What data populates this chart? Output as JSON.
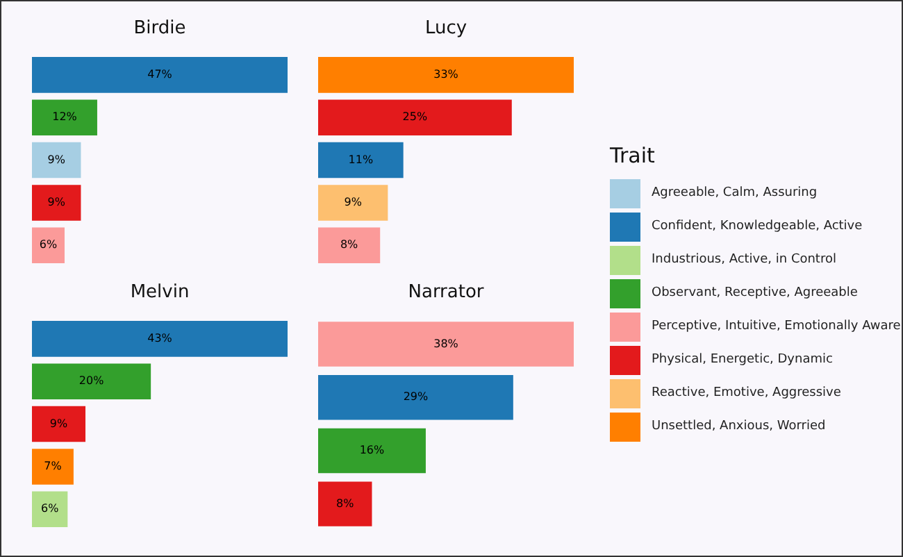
{
  "chart_data": [
    {
      "type": "bar",
      "title": "Birdie",
      "orientation": "horizontal",
      "stacked": true,
      "tick_labels": false,
      "legend": "right",
      "legend_title": "Trait",
      "categories": [
        null,
        null,
        null,
        null,
        null
      ],
      "series": [
        {
          "name": "Confident, Knowledgeable, Active",
          "color": "#1f78b4",
          "values": [
            47,
            null,
            null,
            null,
            null
          ],
          "value_labels": [
            "47%",
            null,
            null,
            null,
            null
          ]
        },
        {
          "name": "Observant, Receptive, Agreeable",
          "color": "#33a02c",
          "values": [
            null,
            12,
            null,
            null,
            null
          ],
          "value_labels": [
            null,
            "12%",
            null,
            null,
            null
          ]
        },
        {
          "name": "Agreeable, Calm, Assuring",
          "color": "#a6cee3",
          "values": [
            null,
            null,
            9,
            null,
            null
          ],
          "value_labels": [
            null,
            null,
            "9%",
            null,
            null
          ]
        },
        {
          "name": "Physical, Energetic, Dynamic",
          "color": "#e31a1c",
          "values": [
            null,
            null,
            null,
            9,
            null
          ],
          "value_labels": [
            null,
            null,
            null,
            "9%",
            null
          ]
        },
        {
          "name": "Perceptive, Intuitive, Emotionally Aware",
          "color": "#fb9a99",
          "values": [
            null,
            null,
            null,
            null,
            6
          ],
          "value_labels": [
            null,
            null,
            null,
            null,
            "6%"
          ]
        }
      ]
    },
    {
      "type": "bar",
      "title": "Lucy",
      "orientation": "horizontal",
      "stacked": true,
      "tick_labels": false,
      "legend": "right",
      "categories": [
        null,
        null,
        null,
        null,
        null
      ],
      "series": [
        {
          "name": "Unsettled, Anxious, Worried",
          "color": "#ff7f00",
          "values": [
            33,
            null,
            null,
            null,
            null
          ],
          "value_labels": [
            "33%",
            null,
            null,
            null,
            null
          ]
        },
        {
          "name": "Physical, Energetic, Dynamic",
          "color": "#e31a1c",
          "values": [
            null,
            25,
            null,
            null,
            null
          ],
          "value_labels": [
            null,
            "25%",
            null,
            null,
            null
          ]
        },
        {
          "name": "Confident, Knowledgeable, Active",
          "color": "#1f78b4",
          "values": [
            null,
            null,
            11,
            null,
            null
          ],
          "value_labels": [
            null,
            null,
            "11%",
            null,
            null
          ]
        },
        {
          "name": "Reactive, Emotive, Aggressive",
          "color": "#fdbf6f",
          "values": [
            null,
            null,
            null,
            9,
            null
          ],
          "value_labels": [
            null,
            null,
            null,
            "9%",
            null
          ]
        },
        {
          "name": "Perceptive, Intuitive, Emotionally Aware",
          "color": "#fb9a99",
          "values": [
            null,
            null,
            null,
            null,
            8
          ],
          "value_labels": [
            null,
            null,
            null,
            null,
            "8%"
          ]
        }
      ]
    },
    {
      "type": "bar",
      "title": "Melvin",
      "orientation": "horizontal",
      "stacked": true,
      "tick_labels": false,
      "legend": "right",
      "categories": [
        null,
        null,
        null,
        null,
        null
      ],
      "series": [
        {
          "name": "Confident, Knowledgeable, Active",
          "color": "#1f78b4",
          "values": [
            43,
            null,
            null,
            null,
            null
          ],
          "value_labels": [
            "43%",
            null,
            null,
            null,
            null
          ]
        },
        {
          "name": "Observant, Receptive, Agreeable",
          "color": "#33a02c",
          "values": [
            null,
            20,
            null,
            null,
            null
          ],
          "value_labels": [
            null,
            "20%",
            null,
            null,
            null
          ]
        },
        {
          "name": "Physical, Energetic, Dynamic",
          "color": "#e31a1c",
          "values": [
            null,
            null,
            9,
            null,
            null
          ],
          "value_labels": [
            null,
            null,
            "9%",
            null,
            null
          ]
        },
        {
          "name": "Unsettled, Anxious, Worried",
          "color": "#ff7f00",
          "values": [
            null,
            null,
            null,
            7,
            null
          ],
          "value_labels": [
            null,
            null,
            null,
            "7%",
            null
          ]
        },
        {
          "name": "Industrious, Active, in Control",
          "color": "#b2df8a",
          "values": [
            null,
            null,
            null,
            null,
            6
          ],
          "value_labels": [
            null,
            null,
            null,
            null,
            "6%"
          ]
        }
      ]
    },
    {
      "type": "bar",
      "title": "Narrator",
      "orientation": "horizontal",
      "stacked": true,
      "tick_labels": false,
      "legend": "right",
      "categories": [
        null,
        null,
        null,
        null
      ],
      "series": [
        {
          "name": "Perceptive, Intuitive, Emotionally Aware",
          "color": "#fb9a99",
          "values": [
            38,
            null,
            null,
            null
          ],
          "value_labels": [
            "38%",
            null,
            null,
            null
          ]
        },
        {
          "name": "Confident, Knowledgeable, Active",
          "color": "#1f78b4",
          "values": [
            null,
            29,
            null,
            null
          ],
          "value_labels": [
            null,
            "29%",
            null,
            null
          ]
        },
        {
          "name": "Observant, Receptive, Agreeable",
          "color": "#33a02c",
          "values": [
            null,
            null,
            16,
            null
          ],
          "value_labels": [
            null,
            null,
            "16%",
            null
          ]
        },
        {
          "name": "Physical, Energetic, Dynamic",
          "color": "#e31a1c",
          "values": [
            null,
            null,
            null,
            8
          ],
          "value_labels": [
            null,
            null,
            null,
            "8%"
          ]
        }
      ]
    }
  ]
}
